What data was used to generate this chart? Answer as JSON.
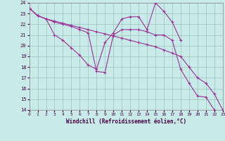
{
  "xlabel": "Windchill (Refroidissement éolien,°C)",
  "xlim": [
    0,
    23
  ],
  "ylim": [
    14,
    24
  ],
  "yticks": [
    14,
    15,
    16,
    17,
    18,
    19,
    20,
    21,
    22,
    23,
    24
  ],
  "xticks": [
    0,
    1,
    2,
    3,
    4,
    5,
    6,
    7,
    8,
    9,
    10,
    11,
    12,
    13,
    14,
    15,
    16,
    17,
    18,
    19,
    20,
    21,
    22,
    23
  ],
  "bg_color": "#c8eae8",
  "grid_color": "#a0c8c0",
  "line_color": "#993399",
  "series": [
    {
      "x": [
        0,
        1,
        2,
        3,
        4,
        5,
        6,
        7,
        8,
        9,
        10,
        11,
        12,
        13,
        14,
        15,
        16,
        17,
        18
      ],
      "y": [
        23.5,
        22.8,
        22.5,
        21.0,
        20.5,
        19.8,
        19.1,
        18.2,
        17.8,
        20.3,
        21.2,
        22.5,
        22.7,
        22.7,
        21.5,
        24.0,
        23.2,
        22.2,
        20.5
      ]
    },
    {
      "x": [
        0,
        1,
        2,
        3,
        4,
        5,
        6,
        7,
        8,
        9,
        10,
        11,
        12,
        13,
        14,
        15,
        16,
        17,
        18,
        19,
        20,
        21,
        22
      ],
      "y": [
        23.5,
        22.8,
        22.5,
        22.2,
        22.0,
        21.8,
        21.5,
        21.2,
        17.6,
        17.5,
        21.0,
        21.5,
        21.5,
        21.5,
        21.3,
        21.0,
        21.0,
        20.5,
        17.8,
        16.5,
        15.3,
        15.2,
        14.0
      ]
    },
    {
      "x": [
        0,
        1,
        2,
        3,
        4,
        5,
        6,
        7,
        8,
        9,
        10,
        11,
        12,
        13,
        14,
        15,
        16,
        17,
        18,
        19,
        20,
        21,
        22,
        23
      ],
      "y": [
        23.5,
        22.8,
        22.5,
        22.3,
        22.1,
        21.9,
        21.7,
        21.5,
        21.3,
        21.1,
        20.9,
        20.7,
        20.5,
        20.3,
        20.1,
        19.9,
        19.6,
        19.3,
        19.0,
        18.0,
        17.0,
        16.5,
        15.5,
        14.0
      ]
    }
  ]
}
